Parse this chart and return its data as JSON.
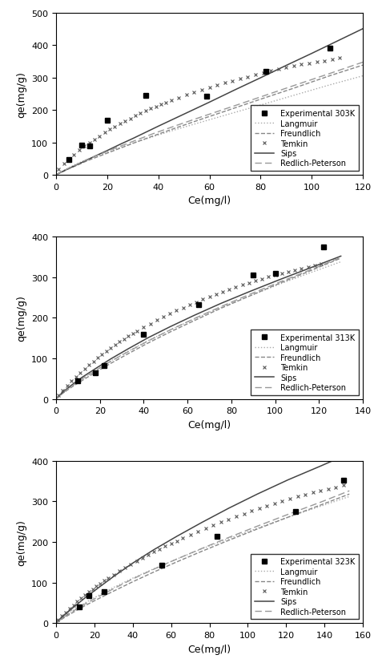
{
  "plots": [
    {
      "temp": "303K",
      "xlim": [
        0,
        120
      ],
      "ylim": [
        0,
        500
      ],
      "xticks": [
        0,
        20,
        40,
        60,
        80,
        100,
        120
      ],
      "yticks": [
        0,
        100,
        200,
        300,
        400,
        500
      ],
      "exp_x": [
        5,
        10,
        13,
        20,
        35,
        59,
        82,
        107
      ],
      "exp_y": [
        48,
        91,
        88,
        168,
        244,
        243,
        319,
        390
      ],
      "langmuir_x": [
        0.1,
        2,
        5,
        8,
        12,
        17,
        23,
        30,
        38,
        47,
        57,
        68,
        80,
        93,
        107,
        120
      ],
      "langmuir_y": [
        0.5,
        10,
        22,
        34,
        47,
        62,
        79,
        98,
        118,
        140,
        163,
        188,
        215,
        245,
        277,
        305
      ],
      "freundlich_x": [
        0.1,
        2,
        5,
        8,
        12,
        17,
        23,
        30,
        38,
        47,
        57,
        68,
        80,
        93,
        107,
        120
      ],
      "freundlich_y": [
        0.3,
        8,
        19,
        29,
        43,
        58,
        76,
        97,
        120,
        145,
        172,
        201,
        233,
        267,
        305,
        338
      ],
      "sips_x": [
        0.1,
        5,
        10,
        15,
        20,
        25,
        30,
        40,
        50,
        60,
        70,
        80,
        90,
        100,
        110,
        120
      ],
      "sips_y": [
        1,
        20,
        38,
        57,
        75,
        94,
        112,
        150,
        187,
        224,
        262,
        299,
        337,
        374,
        412,
        450
      ],
      "rp_x": [
        0.1,
        2,
        5,
        8,
        12,
        17,
        23,
        30,
        38,
        47,
        57,
        68,
        80,
        93,
        107,
        120
      ],
      "rp_y": [
        0.4,
        9,
        21,
        32,
        47,
        63,
        82,
        103,
        127,
        152,
        179,
        208,
        240,
        275,
        312,
        347
      ],
      "temkin_x": [
        1,
        3,
        5,
        7,
        9,
        11,
        13,
        15,
        17,
        19,
        21,
        23,
        25,
        27,
        29,
        31,
        33,
        35,
        37,
        39,
        41,
        43,
        45,
        48,
        51,
        54,
        57,
        60,
        63,
        66,
        69,
        72,
        75,
        78,
        81,
        84,
        87,
        90,
        93,
        96,
        99,
        102,
        105,
        108,
        111
      ],
      "temkin_y": [
        18,
        35,
        50,
        63,
        76,
        88,
        99,
        110,
        120,
        130,
        140,
        149,
        158,
        166,
        174,
        182,
        190,
        197,
        204,
        211,
        217,
        223,
        229,
        238,
        246,
        254,
        262,
        269,
        276,
        283,
        290,
        296,
        302,
        308,
        314,
        320,
        325,
        330,
        335,
        340,
        344,
        348,
        352,
        356,
        360
      ]
    },
    {
      "temp": "313K",
      "xlim": [
        0,
        140
      ],
      "ylim": [
        0,
        400
      ],
      "xticks": [
        0,
        20,
        40,
        60,
        80,
        100,
        120,
        140
      ],
      "yticks": [
        0,
        100,
        200,
        300,
        400
      ],
      "exp_x": [
        10,
        18,
        22,
        40,
        65,
        90,
        100,
        122
      ],
      "exp_y": [
        45,
        65,
        83,
        160,
        233,
        306,
        310,
        375
      ],
      "langmuir_x": [
        0.1,
        3,
        7,
        12,
        18,
        25,
        33,
        42,
        52,
        63,
        75,
        88,
        102,
        117,
        130
      ],
      "langmuir_y": [
        1,
        16,
        32,
        51,
        71,
        94,
        118,
        144,
        170,
        197,
        225,
        253,
        283,
        313,
        338
      ],
      "freundlich_x": [
        0.1,
        3,
        7,
        12,
        18,
        25,
        33,
        42,
        52,
        63,
        75,
        88,
        102,
        117,
        130
      ],
      "freundlich_y": [
        0.5,
        14,
        29,
        46,
        66,
        88,
        112,
        138,
        165,
        193,
        223,
        253,
        285,
        318,
        347
      ],
      "sips_x": [
        0.1,
        3,
        7,
        12,
        18,
        25,
        33,
        42,
        52,
        63,
        75,
        88,
        102,
        117,
        130
      ],
      "sips_y": [
        1,
        17,
        34,
        54,
        75,
        99,
        124,
        151,
        178,
        206,
        235,
        264,
        294,
        325,
        352
      ],
      "rp_x": [
        0.1,
        3,
        7,
        12,
        18,
        25,
        33,
        42,
        52,
        63,
        75,
        88,
        102,
        117,
        130
      ],
      "rp_y": [
        0.5,
        15,
        31,
        50,
        70,
        93,
        117,
        143,
        170,
        198,
        227,
        257,
        288,
        320,
        349
      ],
      "temkin_x": [
        1,
        3,
        5,
        7,
        9,
        11,
        13,
        15,
        17,
        19,
        21,
        23,
        25,
        27,
        29,
        31,
        33,
        35,
        37,
        40,
        43,
        46,
        49,
        52,
        55,
        58,
        61,
        64,
        67,
        70,
        73,
        76,
        79,
        82,
        85,
        88,
        91,
        94,
        97,
        100,
        103,
        106,
        109,
        112,
        115,
        118,
        121
      ],
      "temkin_y": [
        10,
        22,
        33,
        44,
        55,
        65,
        75,
        84,
        93,
        102,
        110,
        118,
        126,
        134,
        141,
        148,
        155,
        162,
        168,
        177,
        186,
        194,
        202,
        210,
        218,
        225,
        232,
        239,
        246,
        252,
        258,
        264,
        270,
        276,
        281,
        286,
        291,
        296,
        301,
        306,
        310,
        314,
        318,
        322,
        326,
        330,
        333
      ]
    },
    {
      "temp": "323K",
      "xlim": [
        0,
        160
      ],
      "ylim": [
        0,
        400
      ],
      "xticks": [
        0,
        20,
        40,
        60,
        80,
        100,
        120,
        140,
        160
      ],
      "yticks": [
        0,
        100,
        200,
        300,
        400
      ],
      "exp_x": [
        12,
        17,
        25,
        55,
        84,
        125,
        150
      ],
      "exp_y": [
        40,
        67,
        78,
        143,
        213,
        275,
        352
      ],
      "langmuir_x": [
        0.1,
        4,
        9,
        15,
        22,
        30,
        40,
        51,
        63,
        76,
        90,
        105,
        121,
        138,
        153
      ],
      "langmuir_y": [
        1,
        16,
        32,
        50,
        68,
        88,
        111,
        134,
        158,
        183,
        208,
        234,
        261,
        288,
        312
      ],
      "freundlich_x": [
        0.1,
        4,
        9,
        15,
        22,
        30,
        40,
        51,
        63,
        76,
        90,
        105,
        121,
        138,
        153
      ],
      "freundlich_y": [
        0.5,
        13,
        27,
        43,
        60,
        79,
        102,
        126,
        151,
        177,
        204,
        232,
        261,
        291,
        318
      ],
      "sips_x": [
        0.1,
        4,
        9,
        15,
        22,
        30,
        40,
        51,
        63,
        76,
        90,
        105,
        121,
        138,
        153
      ],
      "sips_y": [
        1,
        19,
        39,
        62,
        87,
        115,
        148,
        181,
        214,
        248,
        283,
        318,
        353,
        387,
        418
      ],
      "rp_x": [
        0.1,
        4,
        9,
        15,
        22,
        30,
        40,
        51,
        63,
        76,
        90,
        105,
        121,
        138,
        153
      ],
      "rp_y": [
        0.5,
        15,
        30,
        47,
        65,
        85,
        109,
        133,
        158,
        184,
        211,
        239,
        268,
        298,
        326
      ],
      "temkin_x": [
        1,
        3,
        5,
        7,
        9,
        11,
        13,
        15,
        17,
        19,
        21,
        23,
        25,
        27,
        30,
        33,
        36,
        39,
        42,
        45,
        48,
        51,
        54,
        57,
        60,
        63,
        66,
        70,
        74,
        78,
        82,
        86,
        90,
        94,
        98,
        102,
        106,
        110,
        114,
        118,
        122,
        126,
        130,
        134,
        138,
        142,
        146,
        150
      ],
      "temkin_y": [
        8,
        18,
        27,
        36,
        45,
        53,
        61,
        69,
        77,
        84,
        91,
        98,
        105,
        112,
        120,
        129,
        137,
        145,
        153,
        161,
        169,
        176,
        183,
        190,
        197,
        203,
        210,
        218,
        226,
        234,
        241,
        249,
        256,
        263,
        270,
        277,
        283,
        289,
        295,
        301,
        307,
        312,
        317,
        322,
        327,
        331,
        335,
        340
      ]
    }
  ],
  "ylabel": "qe(mg/g)",
  "xlabel": "Ce(mg/l)"
}
